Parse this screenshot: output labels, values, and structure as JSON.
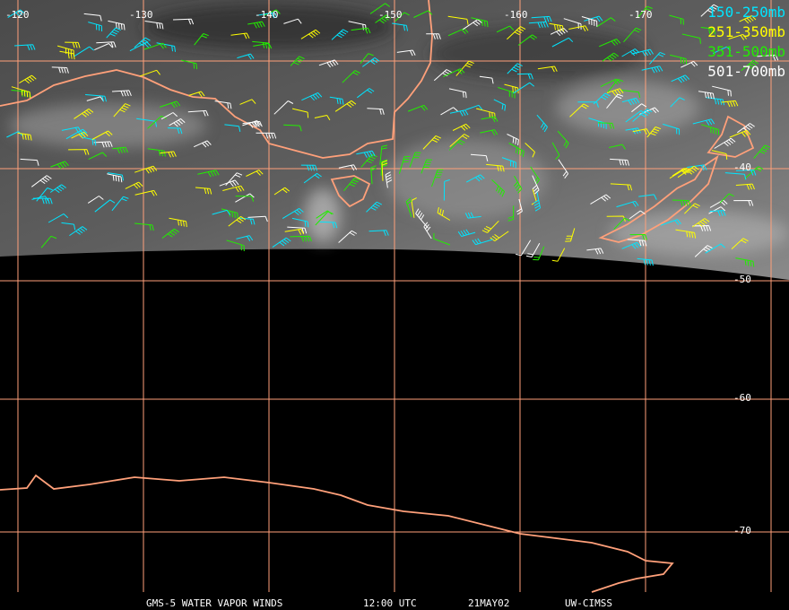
{
  "map": {
    "longitude_labels": [
      "-120",
      "-130",
      "-140",
      "-150",
      "-160",
      "-170"
    ],
    "latitude_labels": [
      "-40",
      "-50",
      "-60",
      "-70"
    ],
    "legend": [
      {
        "label": "150-250mb",
        "color": "#00e5ff"
      },
      {
        "label": "251-350mb",
        "color": "#ffff00"
      },
      {
        "label": "351-500mb",
        "color": "#22ee00"
      },
      {
        "label": "501-700mb",
        "color": "#ffffff"
      }
    ],
    "footer": [
      "GMS-5 WATER VAPOR WINDS",
      "12:00 UTC",
      "21MAY02",
      "UW-CIMSS"
    ]
  }
}
